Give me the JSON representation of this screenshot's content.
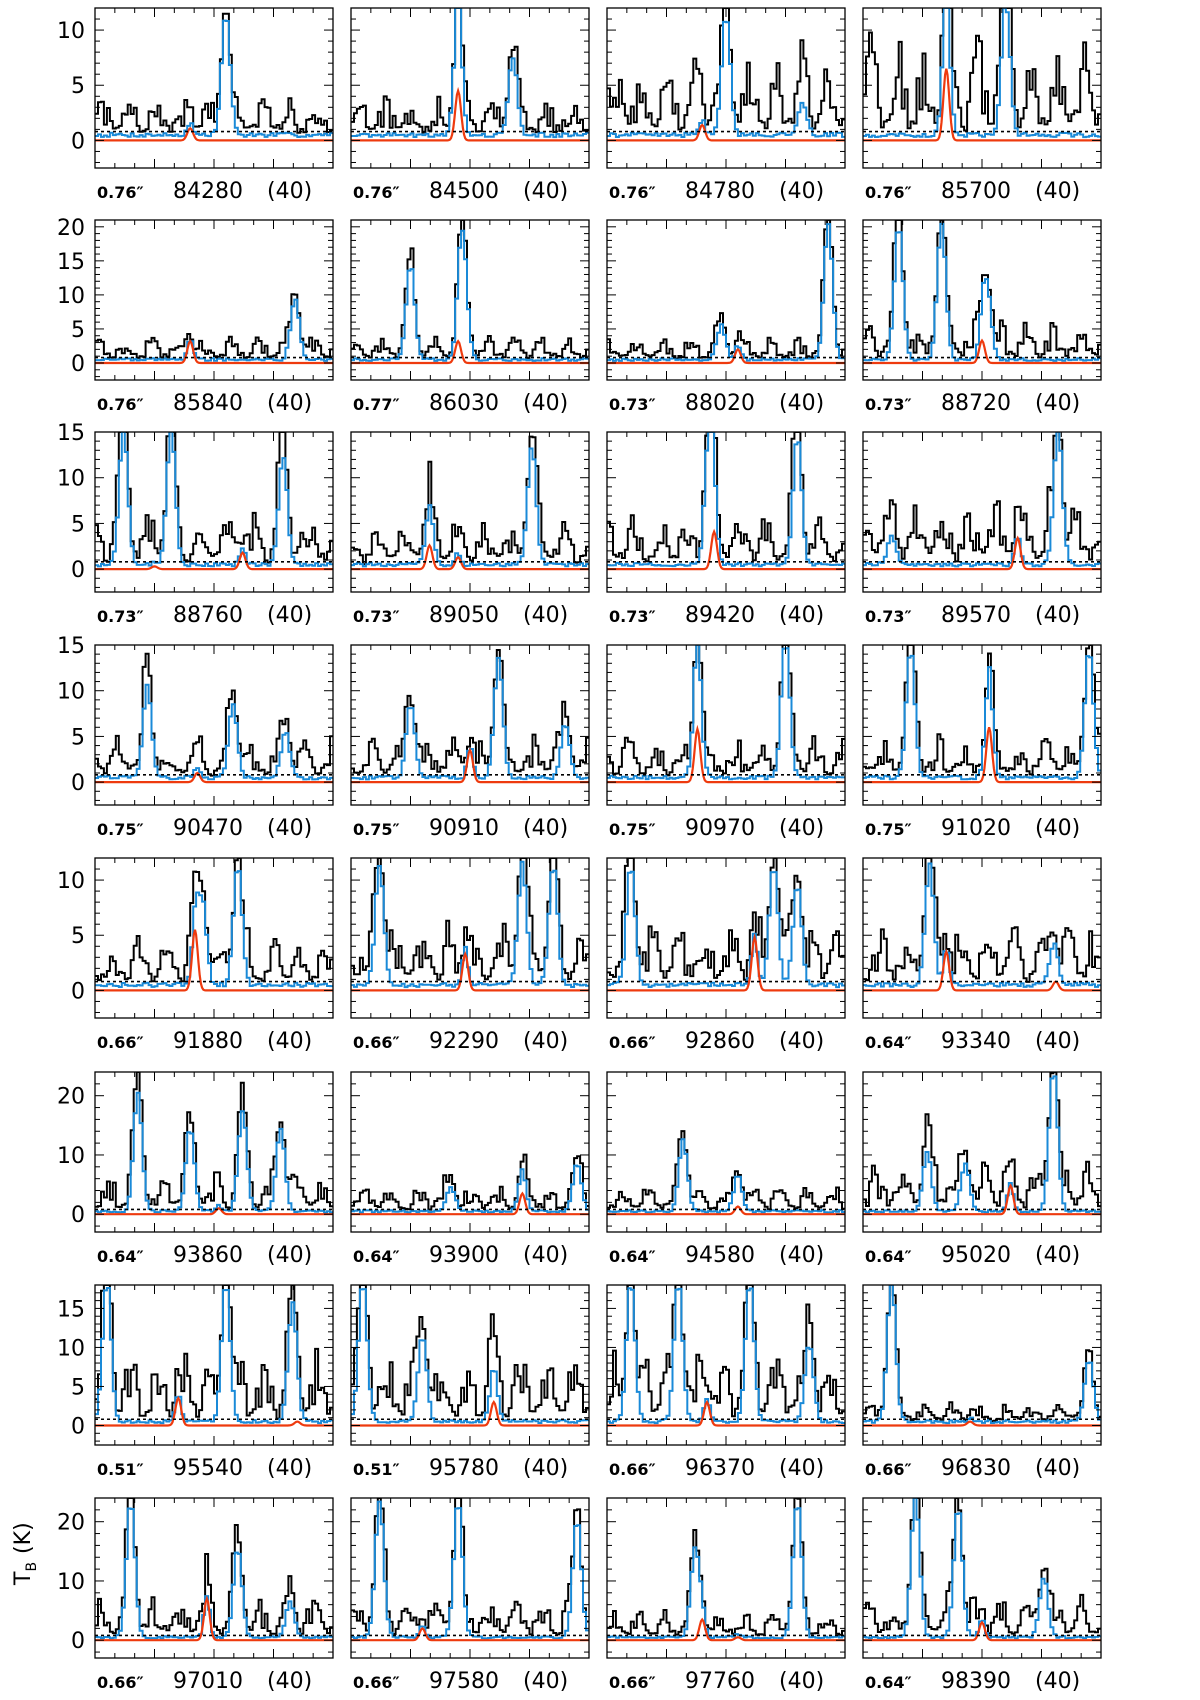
{
  "figure": {
    "ylabel": "T",
    "ylabel_sub": "B",
    "ylabel_unit": "(K)"
  },
  "chart_data": {
    "type": "line",
    "description_of_series_colors": {
      "observed": "#000000",
      "full_model": "#1a8ad8",
      "species_model": "#ee3a0e",
      "threshold": "#000000"
    },
    "rows": [
      {
        "ylim": [
          -2.5,
          12
        ],
        "yticks": [
          0,
          5,
          10
        ],
        "threshold": 0.8,
        "panels": [
          {
            "beam": "0.76″",
            "freq": "84280",
            "rms": "(40)",
            "line_peaks": [
              [
                0.4,
                1.1
              ]
            ],
            "obs_base": 3,
            "model_lines": [
              [
                0.55,
                11
              ]
            ]
          },
          {
            "beam": "0.76″",
            "freq": "84500",
            "rms": "(40)",
            "line_peaks": [
              [
                0.45,
                4.5
              ]
            ],
            "obs_base": 3,
            "model_lines": [
              [
                0.45,
                8
              ],
              [
                0.68,
                7
              ]
            ]
          },
          {
            "beam": "0.76″",
            "freq": "84780",
            "rms": "(40)",
            "line_peaks": [
              [
                0.4,
                1.4
              ]
            ],
            "obs_base": 6,
            "model_lines": [
              [
                0.5,
                11
              ],
              [
                0.82,
                3
              ]
            ]
          },
          {
            "beam": "0.76″",
            "freq": "85700",
            "rms": "(40)",
            "line_peaks": [
              [
                0.35,
                6.5
              ]
            ],
            "obs_base": 8,
            "model_lines": [
              [
                0.35,
                7
              ],
              [
                0.6,
                12
              ]
            ]
          }
        ]
      },
      {
        "ylim": [
          -2.5,
          21
        ],
        "yticks": [
          0,
          5,
          10,
          15,
          20
        ],
        "threshold": 0.8,
        "panels": [
          {
            "beam": "0.76″",
            "freq": "85840",
            "rms": "(40)",
            "line_peaks": [
              [
                0.4,
                3.2
              ]
            ],
            "obs_base": 3,
            "model_lines": [
              [
                0.84,
                9
              ]
            ]
          },
          {
            "beam": "0.77″",
            "freq": "86030",
            "rms": "(40)",
            "line_peaks": [
              [
                0.45,
                3.2
              ]
            ],
            "obs_base": 3,
            "model_lines": [
              [
                0.25,
                14
              ],
              [
                0.47,
                18
              ]
            ]
          },
          {
            "beam": "0.73″",
            "freq": "88020",
            "rms": "(40)",
            "line_peaks": [
              [
                0.55,
                2.0
              ]
            ],
            "obs_base": 3,
            "model_lines": [
              [
                0.48,
                5
              ],
              [
                0.93,
                20
              ]
            ]
          },
          {
            "beam": "0.73″",
            "freq": "88720",
            "rms": "(40)",
            "line_peaks": [
              [
                0.5,
                3.3
              ]
            ],
            "obs_base": 5,
            "model_lines": [
              [
                0.15,
                20
              ],
              [
                0.33,
                20
              ],
              [
                0.52,
                11
              ]
            ]
          }
        ]
      },
      {
        "ylim": [
          -2.5,
          15
        ],
        "yticks": [
          0,
          5,
          10,
          15
        ],
        "threshold": 0.8,
        "panels": [
          {
            "beam": "0.73″",
            "freq": "88760",
            "rms": "(40)",
            "line_peaks": [
              [
                0.25,
                0.3
              ],
              [
                0.62,
                1.8
              ]
            ],
            "obs_base": 5,
            "model_lines": [
              [
                0.12,
                15
              ],
              [
                0.32,
                15
              ],
              [
                0.79,
                12
              ]
            ]
          },
          {
            "beam": "0.73″",
            "freq": "89050",
            "rms": "(40)",
            "line_peaks": [
              [
                0.33,
                2.6
              ],
              [
                0.45,
                1.3
              ]
            ],
            "obs_base": 4,
            "model_lines": [
              [
                0.33,
                4
              ],
              [
                0.76,
                13
              ]
            ]
          },
          {
            "beam": "0.73″",
            "freq": "89420",
            "rms": "(40)",
            "line_peaks": [
              [
                0.45,
                4.1
              ]
            ],
            "obs_base": 5,
            "model_lines": [
              [
                0.43,
                15
              ],
              [
                0.8,
                14
              ]
            ]
          },
          {
            "beam": "0.73″",
            "freq": "89570",
            "rms": "(40)",
            "line_peaks": [
              [
                0.65,
                3.4
              ]
            ],
            "obs_base": 6,
            "model_lines": [
              [
                0.12,
                3
              ],
              [
                0.82,
                15
              ]
            ]
          }
        ]
      },
      {
        "ylim": [
          -2.5,
          15
        ],
        "yticks": [
          0,
          5,
          10,
          15
        ],
        "threshold": 0.8,
        "panels": [
          {
            "beam": "0.75″",
            "freq": "90470",
            "rms": "(40)",
            "line_peaks": [
              [
                0.43,
                1.0
              ]
            ],
            "obs_base": 4,
            "model_lines": [
              [
                0.22,
                10
              ],
              [
                0.58,
                8
              ],
              [
                0.8,
                5
              ]
            ]
          },
          {
            "beam": "0.75″",
            "freq": "90910",
            "rms": "(40)",
            "line_peaks": [
              [
                0.5,
                3.5
              ]
            ],
            "obs_base": 4,
            "model_lines": [
              [
                0.25,
                8
              ],
              [
                0.62,
                13
              ],
              [
                0.9,
                6
              ]
            ]
          },
          {
            "beam": "0.75″",
            "freq": "90970",
            "rms": "(40)",
            "line_peaks": [
              [
                0.38,
                5.8
              ]
            ],
            "obs_base": 4,
            "model_lines": [
              [
                0.38,
                10
              ],
              [
                0.75,
                15
              ]
            ]
          },
          {
            "beam": "0.75″",
            "freq": "91020",
            "rms": "(40)",
            "line_peaks": [
              [
                0.53,
                6.0
              ]
            ],
            "obs_base": 4,
            "model_lines": [
              [
                0.2,
                14
              ],
              [
                0.53,
                6
              ],
              [
                0.95,
                14
              ]
            ]
          }
        ]
      },
      {
        "ylim": [
          -2.5,
          12
        ],
        "yticks": [
          0,
          5,
          10
        ],
        "threshold": 0.8,
        "panels": [
          {
            "beam": "0.66″",
            "freq": "91880",
            "rms": "(40)",
            "line_peaks": [
              [
                0.42,
                5.5
              ]
            ],
            "obs_base": 4,
            "model_lines": [
              [
                0.45,
                8
              ],
              [
                0.6,
                11
              ]
            ]
          },
          {
            "beam": "0.66″",
            "freq": "92290",
            "rms": "(40)",
            "line_peaks": [
              [
                0.48,
                3.3
              ]
            ],
            "obs_base": 5,
            "model_lines": [
              [
                0.12,
                11
              ],
              [
                0.72,
                11
              ],
              [
                0.85,
                11
              ]
            ]
          },
          {
            "beam": "0.66″",
            "freq": "92860",
            "rms": "(40)",
            "line_peaks": [
              [
                0.62,
                4.8
              ]
            ],
            "obs_base": 5,
            "model_lines": [
              [
                0.1,
                11
              ],
              [
                0.7,
                11
              ],
              [
                0.8,
                9
              ]
            ]
          },
          {
            "beam": "0.64″",
            "freq": "93340",
            "rms": "(40)",
            "line_peaks": [
              [
                0.35,
                3.5
              ],
              [
                0.81,
                0.8
              ]
            ],
            "obs_base": 5,
            "model_lines": [
              [
                0.28,
                11
              ],
              [
                0.8,
                3
              ]
            ]
          }
        ]
      },
      {
        "ylim": [
          -3,
          24
        ],
        "yticks": [
          0,
          10,
          20
        ],
        "threshold": 0.8,
        "panels": [
          {
            "beam": "0.64″",
            "freq": "93860",
            "rms": "(40)",
            "line_peaks": [
              [
                0.52,
                1.0
              ]
            ],
            "obs_base": 6,
            "model_lines": [
              [
                0.18,
                20
              ],
              [
                0.4,
                14
              ],
              [
                0.62,
                17
              ],
              [
                0.78,
                14
              ]
            ]
          },
          {
            "beam": "0.64″",
            "freq": "93900",
            "rms": "(40)",
            "line_peaks": [
              [
                0.72,
                3.5
              ]
            ],
            "obs_base": 4,
            "model_lines": [
              [
                0.42,
                4
              ],
              [
                0.72,
                3.5
              ],
              [
                0.95,
                8
              ]
            ]
          },
          {
            "beam": "0.64″",
            "freq": "94580",
            "rms": "(40)",
            "line_peaks": [
              [
                0.55,
                1.3
              ]
            ],
            "obs_base": 4,
            "model_lines": [
              [
                0.32,
                12
              ],
              [
                0.55,
                5
              ]
            ]
          },
          {
            "beam": "0.64″",
            "freq": "95020",
            "rms": "(40)",
            "line_peaks": [
              [
                0.62,
                4.8
              ]
            ],
            "obs_base": 8,
            "model_lines": [
              [
                0.27,
                10
              ],
              [
                0.43,
                8
              ],
              [
                0.8,
                24
              ]
            ]
          }
        ]
      },
      {
        "ylim": [
          -2.5,
          18
        ],
        "yticks": [
          0,
          5,
          10,
          15
        ],
        "threshold": 0.8,
        "panels": [
          {
            "beam": "0.51″",
            "freq": "95540",
            "rms": "(40)",
            "line_peaks": [
              [
                0.35,
                3.5
              ],
              [
                0.85,
                0.5
              ]
            ],
            "obs_base": 8,
            "model_lines": [
              [
                0.05,
                18
              ],
              [
                0.55,
                18
              ],
              [
                0.83,
                15
              ]
            ]
          },
          {
            "beam": "0.51″",
            "freq": "95780",
            "rms": "(40)",
            "line_peaks": [
              [
                0.6,
                3.0
              ]
            ],
            "obs_base": 8,
            "model_lines": [
              [
                0.05,
                18
              ],
              [
                0.3,
                11
              ],
              [
                0.6,
                4
              ]
            ]
          },
          {
            "beam": "0.66″",
            "freq": "96370",
            "rms": "(40)",
            "line_peaks": [
              [
                0.42,
                3.0
              ]
            ],
            "obs_base": 8,
            "model_lines": [
              [
                0.1,
                18
              ],
              [
                0.3,
                18
              ],
              [
                0.6,
                18
              ],
              [
                0.85,
                10
              ]
            ]
          },
          {
            "beam": "0.66″",
            "freq": "96830",
            "rms": "(40)",
            "line_peaks": [
              [
                0.45,
                0.5
              ]
            ],
            "obs_base": 2,
            "model_lines": [
              [
                0.12,
                18
              ],
              [
                0.95,
                8
              ]
            ]
          }
        ]
      },
      {
        "ylim": [
          -3,
          24
        ],
        "yticks": [
          0,
          10,
          20
        ],
        "threshold": 0.8,
        "panels": [
          {
            "beam": "0.66″",
            "freq": "97010",
            "rms": "(40)",
            "line_peaks": [
              [
                0.47,
                7.0
              ]
            ],
            "obs_base": 6,
            "model_lines": [
              [
                0.15,
                23
              ],
              [
                0.6,
                15
              ],
              [
                0.82,
                6
              ]
            ]
          },
          {
            "beam": "0.66″",
            "freq": "97580",
            "rms": "(40)",
            "line_peaks": [
              [
                0.3,
                2.0
              ]
            ],
            "obs_base": 6,
            "model_lines": [
              [
                0.12,
                23
              ],
              [
                0.45,
                23
              ],
              [
                0.95,
                20
              ]
            ]
          },
          {
            "beam": "0.66″",
            "freq": "97760",
            "rms": "(40)",
            "line_peaks": [
              [
                0.4,
                3.5
              ],
              [
                0.55,
                0.5
              ]
            ],
            "obs_base": 4,
            "model_lines": [
              [
                0.37,
                15
              ],
              [
                0.8,
                23
              ]
            ]
          },
          {
            "beam": "0.64″",
            "freq": "98390",
            "rms": "(40)",
            "line_peaks": [
              [
                0.5,
                3.0
              ]
            ],
            "obs_base": 6,
            "model_lines": [
              [
                0.22,
                24
              ],
              [
                0.4,
                22
              ],
              [
                0.76,
                10
              ]
            ]
          }
        ]
      }
    ]
  }
}
